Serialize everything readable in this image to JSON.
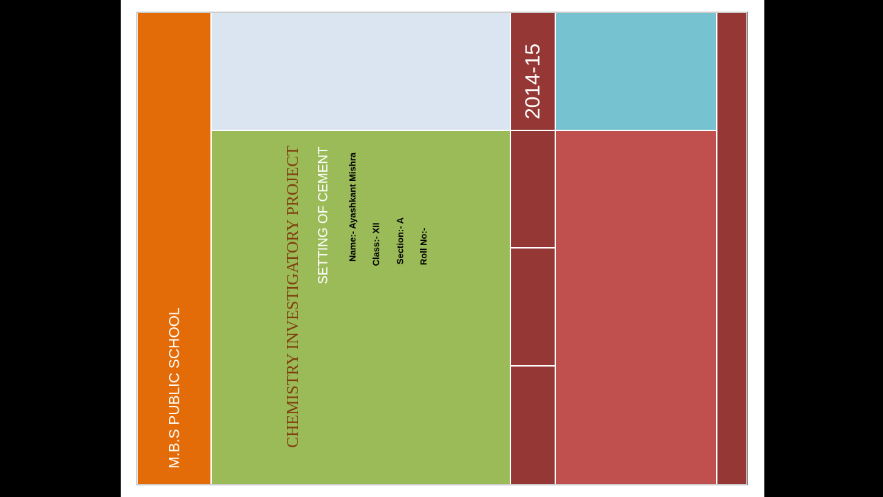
{
  "cover": {
    "school_name": "M.B.S PUBLIC SCHOOL",
    "session_year": "2014-15",
    "project_title": "CHEMISTRY INVESTIGATORY PROJECT",
    "project_subtitle": "SETTING OF CEMENT",
    "student": {
      "name": "Name:- Ayashkant Mishra",
      "class": "Class:- XII",
      "section": "Section:- A",
      "roll": "Roll No:-"
    }
  },
  "colors": {
    "orange": "#e36c09",
    "light_blue": "#dbe5f1",
    "green": "#9bbb59",
    "dark_red": "#953734",
    "teal": "#76c2d0",
    "red": "#c0504d"
  }
}
